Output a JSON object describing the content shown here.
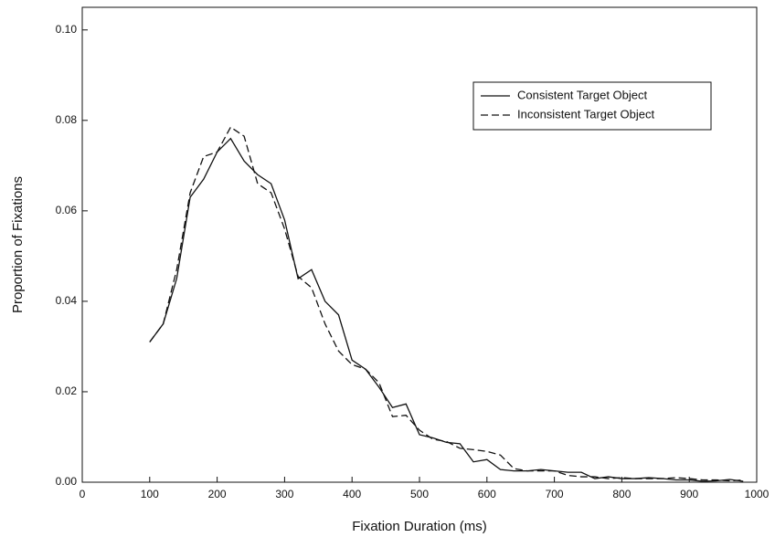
{
  "chart_data": {
    "type": "line",
    "x_label": "Fixation Duration (ms)",
    "y_label": "Proportion of Fixations",
    "x": [
      100,
      120,
      140,
      160,
      180,
      200,
      220,
      240,
      260,
      280,
      300,
      320,
      340,
      360,
      380,
      400,
      420,
      440,
      460,
      480,
      500,
      520,
      540,
      560,
      580,
      600,
      620,
      640,
      660,
      680,
      700,
      720,
      740,
      760,
      780,
      800,
      820,
      840,
      860,
      880,
      900,
      920,
      940,
      960,
      980
    ],
    "series": [
      {
        "name": "Consistent Target Object",
        "color": "#111111",
        "style": "solid",
        "values": [
          0.031,
          0.035,
          0.045,
          0.063,
          0.067,
          0.073,
          0.076,
          0.071,
          0.068,
          0.066,
          0.058,
          0.045,
          0.047,
          0.04,
          0.037,
          0.027,
          0.025,
          0.021,
          0.0165,
          0.0173,
          0.0105,
          0.0098,
          0.0088,
          0.0085,
          0.0045,
          0.005,
          0.0028,
          0.0025,
          0.0025,
          0.0028,
          0.0025,
          0.0022,
          0.0022,
          0.0008,
          0.0012,
          0.0008,
          0.0008,
          0.001,
          0.0008,
          0.0005,
          0.0005,
          0.0002,
          0.0003,
          0.0006,
          0.0002
        ]
      },
      {
        "name": "Inconsistent Target Object",
        "color": "#111111",
        "style": "dashed",
        "values": [
          0.031,
          0.035,
          0.047,
          0.064,
          0.072,
          0.073,
          0.0785,
          0.0765,
          0.066,
          0.064,
          0.056,
          0.0455,
          0.043,
          0.035,
          0.029,
          0.026,
          0.025,
          0.022,
          0.0145,
          0.0148,
          0.0115,
          0.0095,
          0.009,
          0.0075,
          0.0072,
          0.0068,
          0.006,
          0.003,
          0.0025,
          0.0025,
          0.0025,
          0.0015,
          0.0012,
          0.0012,
          0.0008,
          0.001,
          0.0008,
          0.0008,
          0.0008,
          0.001,
          0.0008,
          0.0005,
          0.0005,
          0.0003,
          0.0005
        ]
      }
    ],
    "xlim": [
      0,
      1000
    ],
    "xticks": [
      0,
      100,
      200,
      300,
      400,
      500,
      600,
      700,
      800,
      900,
      1000
    ],
    "ylim": [
      0,
      0.105
    ],
    "yticks": [
      {
        "value": 0,
        "label": "0.00"
      },
      {
        "value": 0.02,
        "label": "0.02"
      },
      {
        "value": 0.04,
        "label": "0.04"
      },
      {
        "value": 0.06,
        "label": "0.06"
      },
      {
        "value": 0.08,
        "label": "0.08"
      },
      {
        "value": 0.1,
        "label": "0.10"
      }
    ],
    "legend": "upper right",
    "grid": false
  }
}
